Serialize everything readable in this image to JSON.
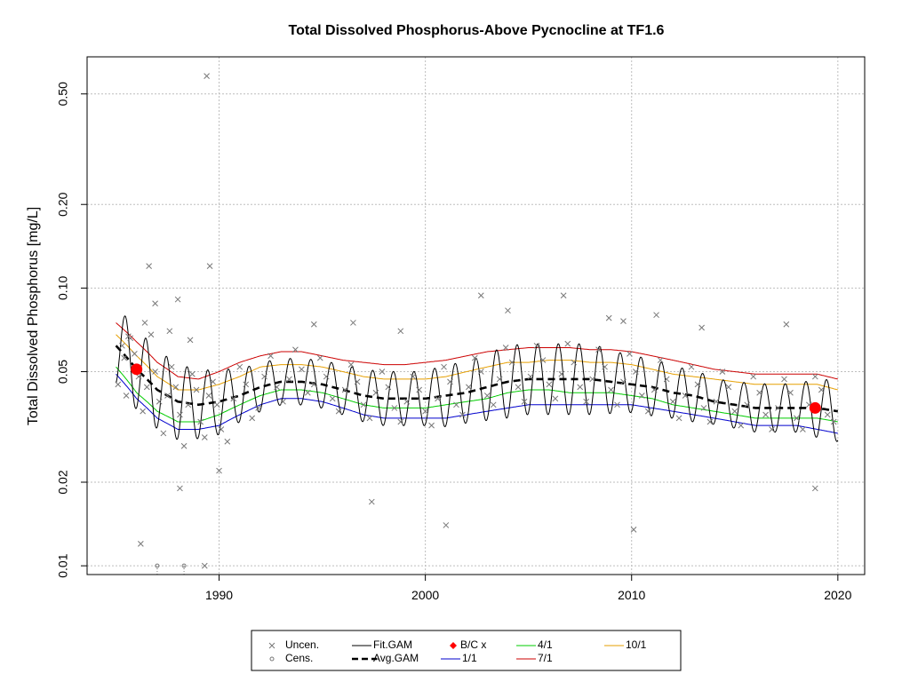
{
  "chart_data": {
    "type": "scatter",
    "title": "Total Dissolved Phosphorus-Above Pycnocline at TF1.6",
    "ylabel": "Total Dissolved Phosphorus [mg/L]",
    "xlabel": "",
    "y_scale": "log",
    "xlim": [
      1983.6,
      2021.3
    ],
    "ylim": [
      0.0093,
      0.68
    ],
    "x_ticks": [
      1990,
      2000,
      2010,
      2020
    ],
    "x_tick_labels": [
      "1990",
      "2000",
      "2010",
      "2020"
    ],
    "y_ticks": [
      0.01,
      0.02,
      0.05,
      0.1,
      0.2,
      0.5
    ],
    "y_tick_labels": [
      "0.01",
      "0.02",
      "0.05",
      "0.10",
      "0.20",
      "0.50"
    ],
    "grid": true,
    "colors": {
      "points": "#777777",
      "fit": "#000000",
      "avg": "#000000",
      "bc": "#ff0000",
      "d1_1": "#0000cd",
      "d4_1": "#00cc00",
      "d7_1": "#cc0000",
      "d10_1": "#e69f00",
      "grid": "#bebebe"
    },
    "series": [
      {
        "name": "1/1",
        "color": "#0000cd",
        "x": [
          1985,
          1986,
          1987,
          1988,
          1989,
          1990,
          1991,
          1992,
          1993,
          1994,
          1995,
          1996,
          1997,
          1998,
          1999,
          2000,
          2001,
          2002,
          2003,
          2004,
          2005,
          2006,
          2007,
          2008,
          2009,
          2010,
          2011,
          2012,
          2013,
          2014,
          2015,
          2016,
          2017,
          2018,
          2019,
          2020
        ],
        "y": [
          0.049,
          0.04,
          0.034,
          0.031,
          0.031,
          0.032,
          0.035,
          0.038,
          0.04,
          0.04,
          0.039,
          0.037,
          0.035,
          0.034,
          0.034,
          0.034,
          0.034,
          0.035,
          0.036,
          0.037,
          0.038,
          0.038,
          0.038,
          0.038,
          0.038,
          0.038,
          0.037,
          0.036,
          0.035,
          0.034,
          0.033,
          0.032,
          0.032,
          0.032,
          0.031,
          0.03
        ]
      },
      {
        "name": "4/1",
        "color": "#00cc00",
        "x": [
          1985,
          1986,
          1987,
          1988,
          1989,
          1990,
          1991,
          1992,
          1993,
          1994,
          1995,
          1996,
          1997,
          1998,
          1999,
          2000,
          2001,
          2002,
          2003,
          2004,
          2005,
          2006,
          2007,
          2008,
          2009,
          2010,
          2011,
          2012,
          2013,
          2014,
          2015,
          2016,
          2017,
          2018,
          2019,
          2020
        ],
        "y": [
          0.052,
          0.042,
          0.036,
          0.033,
          0.033,
          0.035,
          0.038,
          0.041,
          0.043,
          0.043,
          0.042,
          0.04,
          0.038,
          0.037,
          0.037,
          0.037,
          0.038,
          0.039,
          0.04,
          0.042,
          0.043,
          0.043,
          0.042,
          0.042,
          0.042,
          0.041,
          0.04,
          0.038,
          0.037,
          0.036,
          0.035,
          0.034,
          0.034,
          0.034,
          0.034,
          0.033
        ]
      },
      {
        "name": "7/1",
        "color": "#cc0000",
        "x": [
          1985,
          1986,
          1987,
          1988,
          1989,
          1990,
          1991,
          1992,
          1993,
          1994,
          1995,
          1996,
          1997,
          1998,
          1999,
          2000,
          2001,
          2002,
          2003,
          2004,
          2005,
          2006,
          2007,
          2008,
          2009,
          2010,
          2011,
          2012,
          2013,
          2014,
          2015,
          2016,
          2017,
          2018,
          2019,
          2020
        ],
        "y": [
          0.075,
          0.064,
          0.054,
          0.048,
          0.047,
          0.05,
          0.054,
          0.057,
          0.059,
          0.059,
          0.057,
          0.055,
          0.054,
          0.053,
          0.053,
          0.054,
          0.055,
          0.057,
          0.059,
          0.06,
          0.061,
          0.061,
          0.061,
          0.06,
          0.06,
          0.059,
          0.057,
          0.055,
          0.053,
          0.051,
          0.05,
          0.049,
          0.049,
          0.049,
          0.049,
          0.047
        ]
      },
      {
        "name": "10/1",
        "color": "#e69f00",
        "x": [
          1985,
          1986,
          1987,
          1988,
          1989,
          1990,
          1991,
          1992,
          1993,
          1994,
          1995,
          1996,
          1997,
          1998,
          1999,
          2000,
          2001,
          2002,
          2003,
          2004,
          2005,
          2006,
          2007,
          2008,
          2009,
          2010,
          2011,
          2012,
          2013,
          2014,
          2015,
          2016,
          2017,
          2018,
          2019,
          2020
        ],
        "y": [
          0.068,
          0.057,
          0.048,
          0.043,
          0.043,
          0.045,
          0.048,
          0.052,
          0.053,
          0.053,
          0.052,
          0.05,
          0.048,
          0.047,
          0.047,
          0.047,
          0.048,
          0.05,
          0.052,
          0.054,
          0.054,
          0.055,
          0.055,
          0.054,
          0.054,
          0.053,
          0.051,
          0.049,
          0.048,
          0.047,
          0.046,
          0.045,
          0.045,
          0.045,
          0.045,
          0.043
        ]
      },
      {
        "name": "Avg.GAM",
        "color": "#000000",
        "dash": true,
        "x": [
          1985,
          1986,
          1987,
          1988,
          1989,
          1990,
          1991,
          1992,
          1993,
          1994,
          1995,
          1996,
          1997,
          1998,
          1999,
          2000,
          2001,
          2002,
          2003,
          2004,
          2005,
          2006,
          2007,
          2008,
          2009,
          2010,
          2011,
          2012,
          2013,
          2014,
          2015,
          2016,
          2017,
          2018,
          2019,
          2020
        ],
        "y": [
          0.062,
          0.051,
          0.043,
          0.039,
          0.038,
          0.039,
          0.041,
          0.044,
          0.046,
          0.046,
          0.045,
          0.043,
          0.041,
          0.04,
          0.04,
          0.04,
          0.041,
          0.042,
          0.044,
          0.046,
          0.047,
          0.047,
          0.047,
          0.047,
          0.046,
          0.045,
          0.044,
          0.042,
          0.041,
          0.039,
          0.038,
          0.037,
          0.037,
          0.037,
          0.037,
          0.036
        ]
      }
    ],
    "fit_gam": {
      "name": "Fit.GAM",
      "x_start": 1985.0,
      "x_end": 2020.0,
      "seasonal_peak_fraction": 0.45,
      "seasonal_amplitude_factor": 1.38
    },
    "bc_points": {
      "name": "B/C x",
      "x": [
        1986.0,
        2018.9
      ],
      "y": [
        0.051,
        0.037
      ]
    },
    "uncensored_points": {
      "name": "Uncen.",
      "x": [
        1985.1,
        1985.3,
        1985.5,
        1985.7,
        1985.9,
        1986.1,
        1986.3,
        1986.5,
        1986.7,
        1986.9,
        1987.1,
        1987.3,
        1987.5,
        1987.7,
        1987.9,
        1988.1,
        1988.3,
        1988.5,
        1988.7,
        1988.9,
        1989.1,
        1989.3,
        1989.5,
        1989.7,
        1989.9,
        1990.1,
        1990.4,
        1990.7,
        1991.0,
        1991.3,
        1991.6,
        1991.9,
        1992.2,
        1992.5,
        1992.8,
        1993.1,
        1993.4,
        1993.7,
        1994.0,
        1994.3,
        1994.6,
        1994.9,
        1995.2,
        1995.5,
        1995.8,
        1996.1,
        1996.4,
        1996.7,
        1997.0,
        1997.3,
        1997.6,
        1997.9,
        1998.2,
        1998.5,
        1998.8,
        1999.1,
        1999.4,
        1999.7,
        2000.0,
        2000.3,
        2000.6,
        2000.9,
        2001.2,
        2001.5,
        2001.8,
        2002.1,
        2002.4,
        2002.7,
        2003.0,
        2003.3,
        2003.6,
        2003.9,
        2004.2,
        2004.5,
        2004.8,
        2005.1,
        2005.4,
        2005.7,
        2006.0,
        2006.3,
        2006.6,
        2006.9,
        2007.2,
        2007.5,
        2007.8,
        2008.1,
        2008.4,
        2008.7,
        2009.0,
        2009.3,
        2009.6,
        2009.9,
        2010.2,
        2010.5,
        2010.8,
        2011.1,
        2011.4,
        2011.7,
        2012.0,
        2012.3,
        2012.6,
        2012.9,
        2013.2,
        2013.5,
        2013.8,
        2014.1,
        2014.4,
        2014.7,
        2015.0,
        2015.3,
        2015.6,
        2015.9,
        2016.2,
        2016.5,
        2016.8,
        2017.1,
        2017.4,
        2017.7,
        2018.0,
        2018.3,
        2018.6,
        2018.9,
        2019.2,
        2019.5,
        2019.8,
        1989.4,
        1989.55,
        1986.6,
        1986.9,
        1988.0,
        1986.2,
        1988.1,
        1989.3,
        1990.0,
        1997.4,
        2001.0,
        2010.1,
        2018.9,
        2002.7,
        2006.7,
        2004.0,
        1985.4,
        1985.6,
        1986.4,
        1987.6,
        1988.6,
        2008.9,
        2011.2,
        1994.6,
        1996.5,
        1998.8,
        2009.6,
        2013.4,
        2017.5
      ],
      "y": [
        0.045,
        0.062,
        0.041,
        0.066,
        0.058,
        0.048,
        0.036,
        0.044,
        0.068,
        0.05,
        0.039,
        0.03,
        0.041,
        0.052,
        0.044,
        0.035,
        0.027,
        0.038,
        0.049,
        0.043,
        0.033,
        0.029,
        0.041,
        0.046,
        0.038,
        0.031,
        0.028,
        0.04,
        0.052,
        0.045,
        0.034,
        0.037,
        0.048,
        0.057,
        0.044,
        0.039,
        0.047,
        0.06,
        0.051,
        0.042,
        0.045,
        0.056,
        0.048,
        0.04,
        0.036,
        0.043,
        0.053,
        0.046,
        0.038,
        0.034,
        0.042,
        0.05,
        0.044,
        0.037,
        0.033,
        0.039,
        0.048,
        0.043,
        0.036,
        0.032,
        0.04,
        0.052,
        0.046,
        0.038,
        0.035,
        0.044,
        0.056,
        0.05,
        0.041,
        0.038,
        0.047,
        0.061,
        0.054,
        0.044,
        0.039,
        0.048,
        0.062,
        0.055,
        0.045,
        0.04,
        0.049,
        0.063,
        0.054,
        0.044,
        0.039,
        0.047,
        0.06,
        0.052,
        0.043,
        0.038,
        0.046,
        0.058,
        0.05,
        0.041,
        0.036,
        0.043,
        0.055,
        0.047,
        0.039,
        0.034,
        0.041,
        0.052,
        0.045,
        0.037,
        0.033,
        0.039,
        0.05,
        0.044,
        0.036,
        0.032,
        0.038,
        0.048,
        0.042,
        0.035,
        0.031,
        0.037,
        0.047,
        0.042,
        0.034,
        0.031,
        0.038,
        0.048,
        0.043,
        0.035,
        0.033,
        0.58,
        0.12,
        0.12,
        0.088,
        0.091,
        0.012,
        0.019,
        0.01,
        0.022,
        0.017,
        0.014,
        0.0135,
        0.019,
        0.094,
        0.094,
        0.083,
        0.056,
        0.067,
        0.075,
        0.07,
        0.065,
        0.078,
        0.08,
        0.074,
        0.075,
        0.07,
        0.076,
        0.072,
        0.074
      ]
    },
    "censored_points": {
      "name": "Cens.",
      "x": [
        1987.0,
        1988.3
      ],
      "y": [
        0.01,
        0.01
      ]
    },
    "legend": {
      "placement": "bottom",
      "entries": [
        {
          "label": "Uncen.",
          "kind": "x-marker",
          "color": "#777777"
        },
        {
          "label": "Cens.",
          "kind": "circle-marker",
          "color": "#777777"
        },
        {
          "label": "Fit.GAM",
          "kind": "line",
          "color": "#000000"
        },
        {
          "label": "Avg.GAM",
          "kind": "dash",
          "color": "#000000"
        },
        {
          "label": "B/C x",
          "kind": "diamond",
          "color": "#ff0000"
        },
        {
          "label": "1/1",
          "kind": "line",
          "color": "#0000cd"
        },
        {
          "label": "4/1",
          "kind": "line",
          "color": "#00cc00"
        },
        {
          "label": "7/1",
          "kind": "line",
          "color": "#cc0000"
        },
        {
          "label": "10/1",
          "kind": "line",
          "color": "#e69f00"
        }
      ]
    }
  }
}
